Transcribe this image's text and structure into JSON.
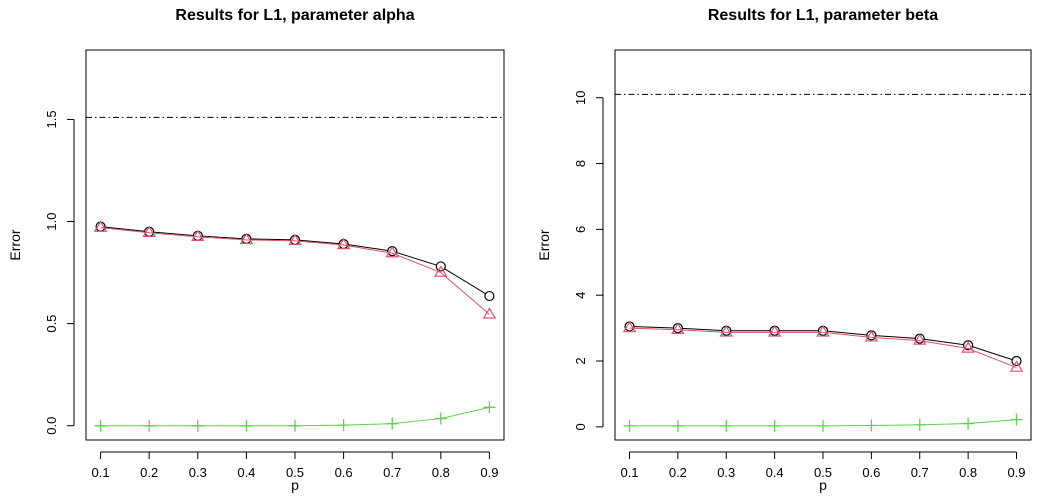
{
  "chart_data": [
    {
      "type": "line",
      "title": "Results for L1, parameter alpha",
      "xlabel": "p",
      "ylabel": "Error",
      "x": [
        0.1,
        0.2,
        0.3,
        0.4,
        0.5,
        0.6,
        0.7,
        0.8,
        0.9
      ],
      "xticks": [
        "0.1",
        "0.2",
        "0.3",
        "0.4",
        "0.5",
        "0.6",
        "0.7",
        "0.8",
        "0.9"
      ],
      "yticks": [
        "0.0",
        "0.5",
        "1.0",
        "1.5"
      ],
      "xlim": [
        0.07,
        0.93
      ],
      "ylim": [
        -0.07,
        1.84
      ],
      "reference_line": {
        "y": 1.51,
        "style": "dash-dot",
        "color": "#000000"
      },
      "series": [
        {
          "marker": "circle",
          "color": "#000000",
          "values": [
            0.975,
            0.95,
            0.93,
            0.915,
            0.91,
            0.89,
            0.855,
            0.78,
            0.635
          ]
        },
        {
          "marker": "triangle",
          "color": "#DF536B",
          "values": [
            0.97,
            0.945,
            0.925,
            0.91,
            0.905,
            0.885,
            0.845,
            0.75,
            0.545
          ]
        },
        {
          "marker": "plus",
          "color": "#61D04F",
          "values": [
            0.0,
            0.0,
            0.0,
            0.0,
            0.0,
            0.003,
            0.01,
            0.035,
            0.09
          ]
        }
      ]
    },
    {
      "type": "line",
      "title": "Results for L1, parameter beta",
      "xlabel": "p",
      "ylabel": "Error",
      "x": [
        0.1,
        0.2,
        0.3,
        0.4,
        0.5,
        0.6,
        0.7,
        0.8,
        0.9
      ],
      "xticks": [
        "0.1",
        "0.2",
        "0.3",
        "0.4",
        "0.5",
        "0.6",
        "0.7",
        "0.8",
        "0.9"
      ],
      "yticks": [
        "0",
        "2",
        "4",
        "6",
        "8",
        "10"
      ],
      "xlim": [
        0.07,
        0.93
      ],
      "ylim": [
        -0.4,
        11.45
      ],
      "reference_line": {
        "y": 10.1,
        "style": "dash-dot",
        "color": "#000000"
      },
      "series": [
        {
          "marker": "circle",
          "color": "#000000",
          "values": [
            3.05,
            3.0,
            2.92,
            2.92,
            2.92,
            2.78,
            2.68,
            2.48,
            2.0
          ]
        },
        {
          "marker": "triangle",
          "color": "#DF536B",
          "values": [
            3.0,
            2.95,
            2.87,
            2.87,
            2.87,
            2.72,
            2.62,
            2.38,
            1.8
          ]
        },
        {
          "marker": "plus",
          "color": "#61D04F",
          "values": [
            0.03,
            0.03,
            0.03,
            0.03,
            0.03,
            0.04,
            0.06,
            0.1,
            0.22
          ]
        }
      ]
    }
  ]
}
